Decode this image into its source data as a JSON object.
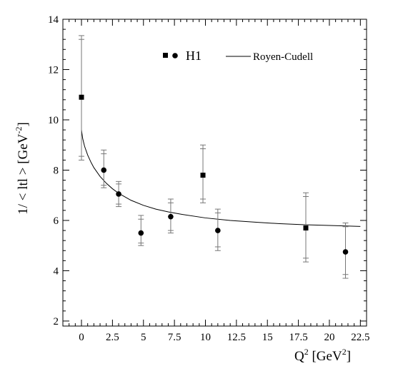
{
  "chart_data": {
    "type": "scatter",
    "xlim": [
      -1.5,
      23.0
    ],
    "ylim": [
      1.8,
      14.0
    ],
    "x_ticks": [
      0,
      2.5,
      5,
      7.5,
      10,
      12.5,
      15,
      17.5,
      20,
      22.5
    ],
    "x_tick_labels": [
      "0",
      "2.5",
      "5",
      "7.5",
      "10",
      "12.5",
      "15",
      "17.5",
      "20",
      "22.5"
    ],
    "y_ticks": [
      2,
      4,
      6,
      8,
      10,
      12,
      14
    ],
    "y_tick_labels": [
      "2",
      "4",
      "6",
      "8",
      "10",
      "12",
      "14"
    ],
    "xlabel": {
      "base": "Q",
      "sup": "2",
      "unit_pre": " [GeV",
      "unit_sup": "2",
      "unit_post": "]"
    },
    "ylabel": {
      "base": "1/ < ltl > [GeV",
      "sup": "-2",
      "post": "]"
    },
    "grid": false,
    "legend": {
      "placement": "top-right",
      "h1_label": "H1",
      "curve_label": "Royen-Cudell"
    },
    "series": [
      {
        "name": "H1",
        "marker": "square",
        "points": [
          {
            "x": 0.0,
            "y": 10.9,
            "err_lo": 8.4,
            "err_hi": 13.35,
            "stat_lo": 8.55,
            "stat_hi": 13.2
          },
          {
            "x": 9.8,
            "y": 7.8,
            "err_lo": 6.7,
            "err_hi": 9.0,
            "stat_lo": 6.85,
            "stat_hi": 8.85
          },
          {
            "x": 18.1,
            "y": 5.7,
            "err_lo": 4.35,
            "err_hi": 7.1,
            "stat_lo": 4.5,
            "stat_hi": 6.95
          }
        ]
      },
      {
        "name": "H1",
        "marker": "circle",
        "points": [
          {
            "x": 1.8,
            "y": 8.0,
            "err_lo": 7.3,
            "err_hi": 8.8,
            "stat_lo": 7.4,
            "stat_hi": 8.65
          },
          {
            "x": 3.0,
            "y": 7.05,
            "err_lo": 6.55,
            "err_hi": 7.55,
            "stat_lo": 6.65,
            "stat_hi": 7.45
          },
          {
            "x": 4.8,
            "y": 5.5,
            "err_lo": 5.0,
            "err_hi": 6.2,
            "stat_lo": 5.1,
            "stat_hi": 6.05
          },
          {
            "x": 7.2,
            "y": 6.15,
            "err_lo": 5.5,
            "err_hi": 6.85,
            "stat_lo": 5.6,
            "stat_hi": 6.7
          },
          {
            "x": 11.0,
            "y": 5.6,
            "err_lo": 4.8,
            "err_hi": 6.45,
            "stat_lo": 4.95,
            "stat_hi": 6.3
          },
          {
            "x": 21.3,
            "y": 4.75,
            "err_lo": 3.7,
            "err_hi": 5.9,
            "stat_lo": 3.85,
            "stat_hi": 5.75
          }
        ]
      }
    ],
    "curve": {
      "name": "Royen-Cudell",
      "x": [
        0.0,
        0.1,
        0.25,
        0.5,
        0.75,
        1.0,
        1.5,
        2.0,
        2.5,
        3.0,
        4.0,
        5.0,
        6.0,
        7.0,
        8.0,
        10.0,
        12.0,
        14.0,
        16.0,
        18.0,
        20.0,
        22.5
      ],
      "y": [
        9.6,
        9.25,
        8.95,
        8.6,
        8.33,
        8.1,
        7.75,
        7.48,
        7.26,
        7.08,
        6.8,
        6.6,
        6.45,
        6.34,
        6.25,
        6.1,
        6.0,
        5.93,
        5.87,
        5.83,
        5.8,
        5.76
      ]
    }
  }
}
